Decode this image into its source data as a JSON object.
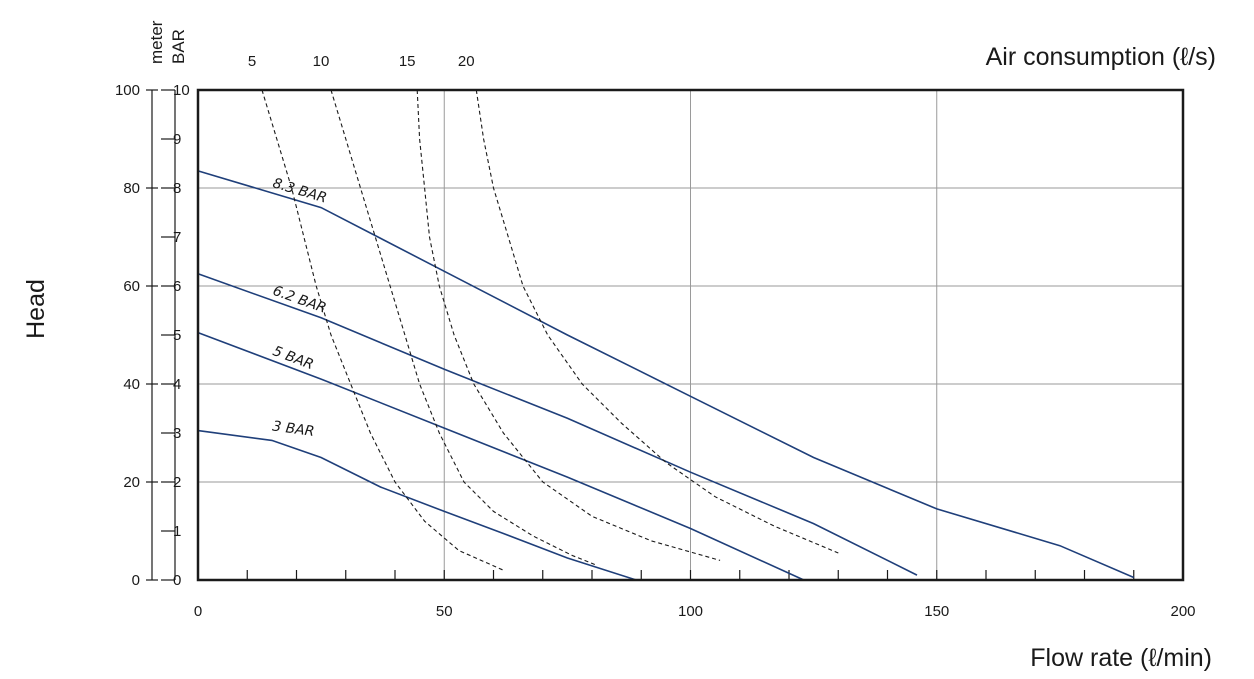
{
  "chart_data": {
    "type": "line",
    "xlabel": "Flow rate (ℓ/min)",
    "ylabel": "Head",
    "top_axis_label": "Air consumption (ℓ/s)",
    "left_axis_units": [
      "meter",
      "BAR"
    ],
    "xlim": [
      0,
      200
    ],
    "ylim_meter": [
      0,
      100
    ],
    "ylim_bar": [
      0,
      10
    ],
    "x_ticks": [
      0,
      50,
      100,
      150,
      200
    ],
    "y_meter_ticks": [
      0,
      20,
      40,
      60,
      80,
      100
    ],
    "y_bar_ticks": [
      0,
      1,
      2,
      3,
      4,
      5,
      6,
      7,
      8,
      9,
      10
    ],
    "air_consumption_ticks": [
      "5",
      "10",
      "15",
      "20"
    ],
    "grid": true,
    "series": [
      {
        "name": "8.3 BAR",
        "line_style": "solid",
        "color": "#1f3f7a",
        "points": [
          [
            0,
            83.5
          ],
          [
            25,
            76
          ],
          [
            50,
            63
          ],
          [
            75,
            50
          ],
          [
            100,
            37.5
          ],
          [
            125,
            25
          ],
          [
            150,
            14.5
          ],
          [
            175,
            7
          ],
          [
            190,
            0.5
          ]
        ]
      },
      {
        "name": "6.2 BAR",
        "line_style": "solid",
        "color": "#1f3f7a",
        "points": [
          [
            0,
            62.5
          ],
          [
            25,
            53.5
          ],
          [
            50,
            43
          ],
          [
            75,
            33
          ],
          [
            100,
            22
          ],
          [
            125,
            11.5
          ],
          [
            146,
            1
          ]
        ]
      },
      {
        "name": "5 BAR",
        "line_style": "solid",
        "color": "#1f3f7a",
        "points": [
          [
            0,
            50.5
          ],
          [
            25,
            41
          ],
          [
            50,
            31
          ],
          [
            75,
            21
          ],
          [
            100,
            10.5
          ],
          [
            123,
            0
          ]
        ]
      },
      {
        "name": "3 BAR",
        "line_style": "solid",
        "color": "#1f3f7a",
        "points": [
          [
            0,
            30.5
          ],
          [
            15,
            28.5
          ],
          [
            25,
            25
          ],
          [
            37,
            19
          ],
          [
            50,
            14
          ],
          [
            62,
            9.5
          ],
          [
            75,
            4.5
          ],
          [
            89,
            0
          ]
        ]
      },
      {
        "line_style": "dashed",
        "color": "#1a1a1a",
        "air_consumption": "5",
        "points": [
          [
            13,
            100
          ],
          [
            16,
            90
          ],
          [
            19,
            80
          ],
          [
            21.5,
            70
          ],
          [
            24,
            60
          ],
          [
            27,
            50
          ],
          [
            31,
            40
          ],
          [
            35,
            30
          ],
          [
            40,
            20
          ],
          [
            46,
            12
          ],
          [
            53,
            6
          ],
          [
            62,
            2
          ]
        ]
      },
      {
        "line_style": "dashed",
        "color": "#1a1a1a",
        "air_consumption": "10",
        "points": [
          [
            27,
            100
          ],
          [
            30,
            90
          ],
          [
            33,
            80
          ],
          [
            36,
            70
          ],
          [
            39,
            60
          ],
          [
            42,
            50
          ],
          [
            45,
            40
          ],
          [
            49,
            30
          ],
          [
            54,
            20
          ],
          [
            60,
            14
          ],
          [
            68,
            9
          ],
          [
            76,
            5
          ],
          [
            81,
            3
          ]
        ]
      },
      {
        "line_style": "dashed",
        "color": "#1a1a1a",
        "air_consumption": "15",
        "points": [
          [
            44.5,
            100
          ],
          [
            45,
            90
          ],
          [
            46,
            80
          ],
          [
            47,
            70
          ],
          [
            49,
            60
          ],
          [
            52,
            50
          ],
          [
            56,
            40
          ],
          [
            62,
            30
          ],
          [
            70,
            20
          ],
          [
            80,
            13
          ],
          [
            92,
            8
          ],
          [
            106,
            4
          ]
        ]
      },
      {
        "line_style": "dashed",
        "color": "#1a1a1a",
        "air_consumption": "20",
        "points": [
          [
            56.5,
            100
          ],
          [
            58,
            90
          ],
          [
            60,
            80
          ],
          [
            63,
            70
          ],
          [
            66,
            60
          ],
          [
            71,
            50
          ],
          [
            78,
            40
          ],
          [
            86,
            32
          ],
          [
            95,
            24
          ],
          [
            105,
            17
          ],
          [
            117,
            11
          ],
          [
            130,
            5.5
          ]
        ]
      }
    ]
  }
}
